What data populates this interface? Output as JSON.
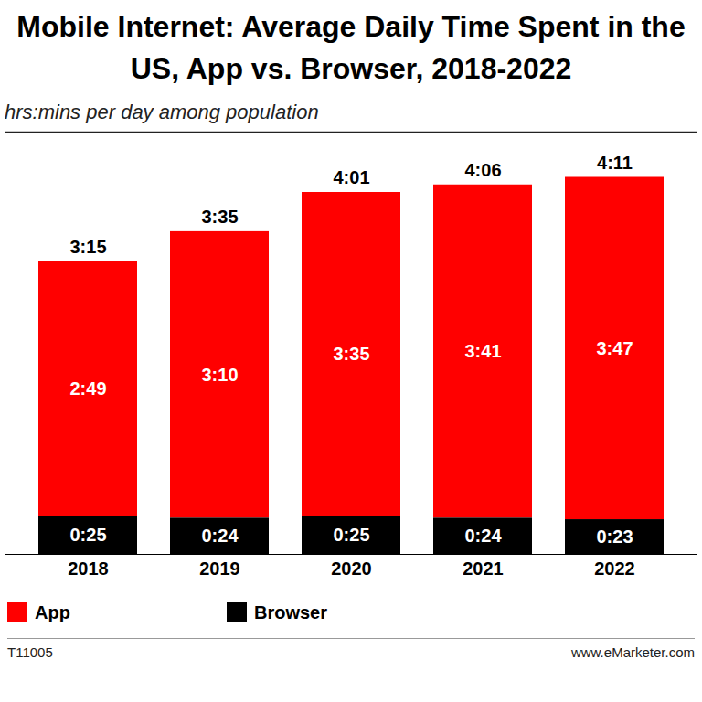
{
  "chart_data": {
    "type": "bar",
    "title": "Mobile Internet: Average Daily Time Spent in the US, App vs. Browser, 2018-2022",
    "subtitle": "hrs:mins per day among population",
    "categories": [
      "2018",
      "2019",
      "2020",
      "2021",
      "2022"
    ],
    "series": [
      {
        "name": "App",
        "color": "#ff0000",
        "values": [
          169,
          190,
          215,
          221,
          227
        ],
        "value_labels": [
          "2:49",
          "3:10",
          "3:35",
          "3:41",
          "3:47"
        ]
      },
      {
        "name": "Browser",
        "color": "#000000",
        "values": [
          25,
          24,
          25,
          24,
          23
        ],
        "value_labels": [
          "0:25",
          "0:24",
          "0:25",
          "0:24",
          "0:23"
        ]
      }
    ],
    "totals": [
      195,
      215,
      241,
      246,
      251
    ],
    "total_labels": [
      "3:15",
      "3:35",
      "4:01",
      "4:06",
      "4:11"
    ],
    "ylim": [
      0,
      280
    ],
    "yticks": [],
    "grid": false,
    "stacked": true,
    "data_labels": true,
    "tick_labels": "x",
    "legend": "bottom",
    "notes": [
      "T11005",
      "www.eMarketer.com"
    ]
  }
}
